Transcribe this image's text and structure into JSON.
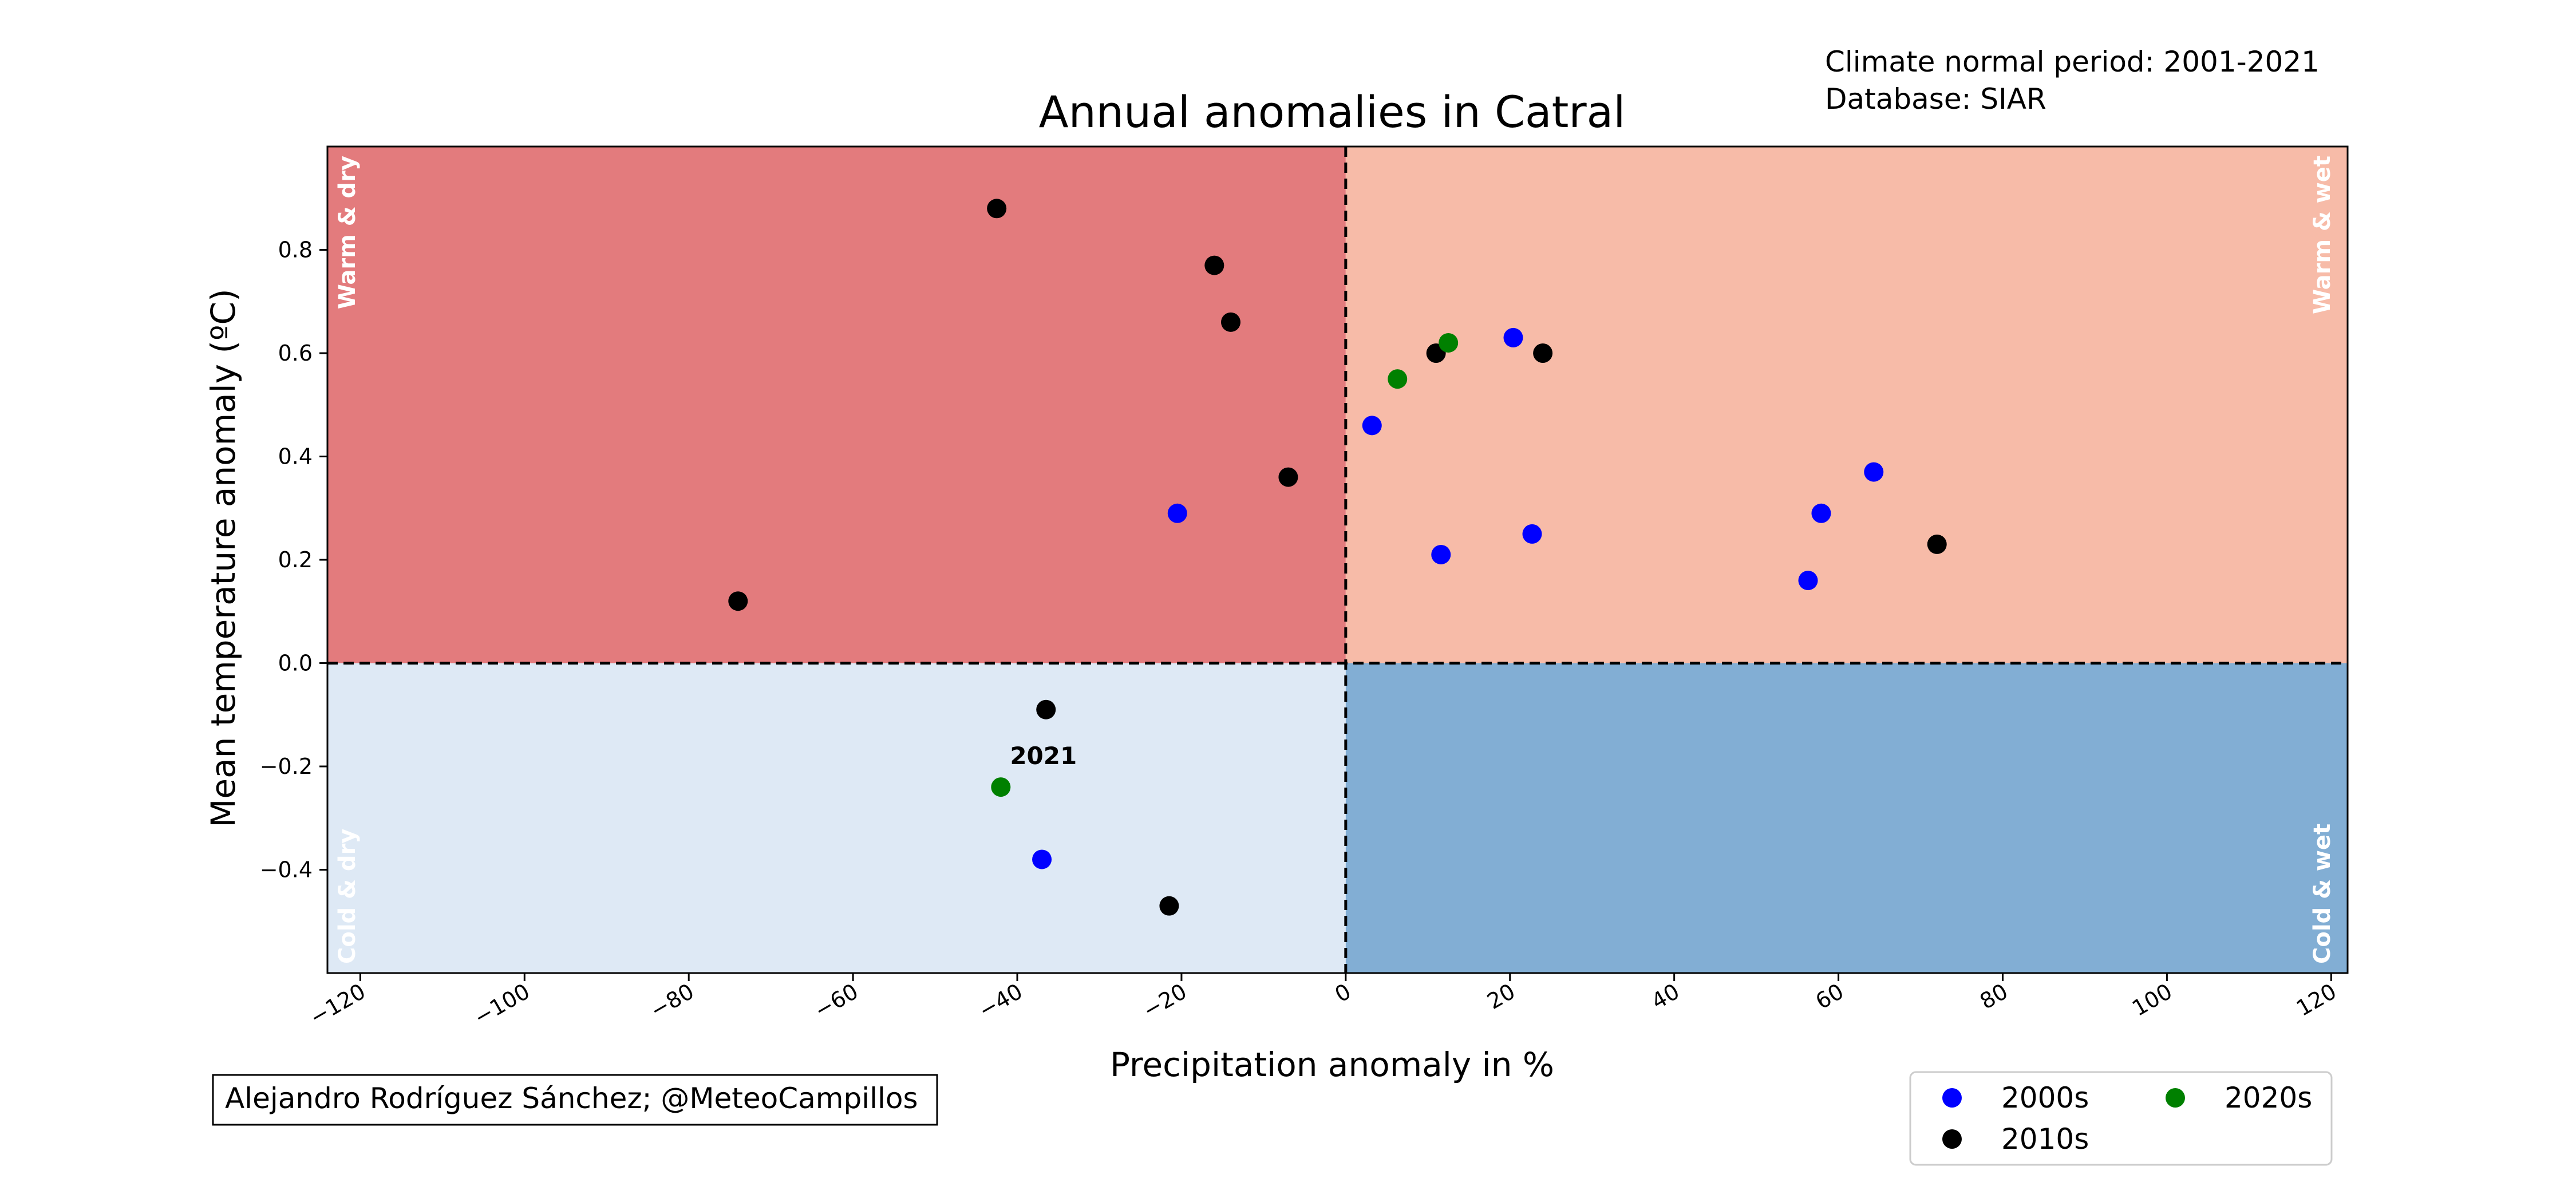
{
  "chart_data": {
    "type": "scatter",
    "title": "Annual anomalies in Catral",
    "xlabel": "Precipitation anomaly in %",
    "ylabel": "Mean temperature anomaly (ºC)",
    "xlim": [
      -124,
      122
    ],
    "ylim": [
      -0.6,
      1.0
    ],
    "x_ticks": [
      -120,
      -100,
      -80,
      -60,
      -40,
      -20,
      0,
      20,
      40,
      60,
      80,
      100,
      120
    ],
    "y_ticks": [
      -0.4,
      -0.2,
      0.0,
      0.2,
      0.4,
      0.6,
      0.8
    ],
    "grid": false,
    "legend_position": "bottom-right",
    "quadrants": [
      {
        "name": "Warm & dry",
        "color": "#e37b7d"
      },
      {
        "name": "Warm & wet",
        "color": "#f7bba8"
      },
      {
        "name": "Cold & dry",
        "color": "#dee9f5"
      },
      {
        "name": "Cold & wet",
        "color": "#82aed4"
      }
    ],
    "series": [
      {
        "name": "2000s",
        "color": "#0000ff",
        "x": [
          3.2,
          11.6,
          20.4,
          22.7,
          56.3,
          57.9,
          64.3,
          -20.5,
          -37
        ],
        "y": [
          0.46,
          0.21,
          0.63,
          0.25,
          0.16,
          0.29,
          0.37,
          0.29,
          -0.38
        ]
      },
      {
        "name": "2010s",
        "color": "#000000",
        "x": [
          -74,
          -42.5,
          -16,
          -14,
          -7,
          11,
          24,
          72,
          -36.5,
          -21.5
        ],
        "y": [
          0.12,
          0.88,
          0.77,
          0.66,
          0.36,
          0.6,
          0.6,
          0.23,
          -0.09,
          -0.47
        ]
      },
      {
        "name": "2020s",
        "color": "#008000",
        "x": [
          6.3,
          12.5,
          -42
        ],
        "y": [
          0.55,
          0.62,
          -0.24
        ]
      }
    ],
    "annotations": [
      {
        "text": "2021",
        "x": -42,
        "y": -0.24
      }
    ]
  },
  "notes": {
    "period": "Climate normal period: 2001-2021",
    "database": "Database: SIAR",
    "credit": "Alejandro Rodríguez Sánchez; @MeteoCampillos"
  }
}
